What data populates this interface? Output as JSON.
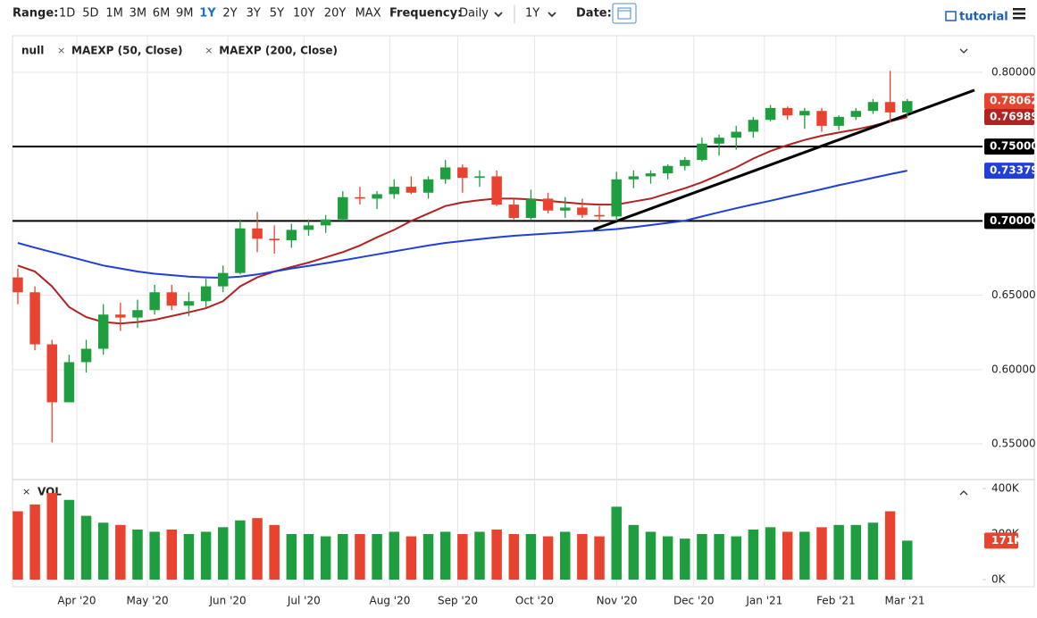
{
  "toolbar": {
    "range_label": "Range:",
    "ranges": [
      "1D",
      "5D",
      "1M",
      "3M",
      "6M",
      "9M",
      "1Y",
      "2Y",
      "3Y",
      "5Y",
      "10Y",
      "20Y",
      "MAX"
    ],
    "active_range": 6,
    "frequency_label": "Frequency:",
    "frequency": "Daily",
    "period": "1Y",
    "date_label": "Date:",
    "tutorial": "tutorial"
  },
  "chart_data": {
    "type": "candlestick",
    "symbol": "null",
    "open": [
      0.662,
      0.652,
      0.617,
      0.578,
      0.605,
      0.614,
      0.637,
      0.635,
      0.64,
      0.652,
      0.643,
      0.646,
      0.656,
      0.665,
      0.695,
      0.688,
      0.687,
      0.694,
      0.697,
      0.701,
      0.716,
      0.715,
      0.718,
      0.723,
      0.719,
      0.728,
      0.736,
      0.729,
      0.73,
      0.711,
      0.702,
      0.715,
      0.707,
      0.709,
      0.704,
      0.703,
      0.728,
      0.73,
      0.732,
      0.737,
      0.741,
      0.752,
      0.756,
      0.76,
      0.768,
      0.776,
      0.771,
      0.774,
      0.764,
      0.77,
      0.774,
      0.78,
      0.773
    ],
    "high": [
      0.668,
      0.656,
      0.62,
      0.61,
      0.62,
      0.644,
      0.645,
      0.647,
      0.657,
      0.657,
      0.652,
      0.661,
      0.67,
      0.701,
      0.706,
      0.697,
      0.698,
      0.701,
      0.704,
      0.72,
      0.723,
      0.72,
      0.728,
      0.73,
      0.73,
      0.741,
      0.738,
      0.734,
      0.734,
      0.715,
      0.721,
      0.719,
      0.716,
      0.715,
      0.71,
      0.733,
      0.734,
      0.734,
      0.738,
      0.743,
      0.756,
      0.758,
      0.764,
      0.77,
      0.778,
      0.777,
      0.776,
      0.776,
      0.771,
      0.776,
      0.782,
      0.801,
      0.782
    ],
    "low": [
      0.644,
      0.613,
      0.551,
      0.58,
      0.598,
      0.61,
      0.626,
      0.628,
      0.637,
      0.64,
      0.636,
      0.642,
      0.652,
      0.664,
      0.679,
      0.678,
      0.682,
      0.69,
      0.692,
      0.7,
      0.711,
      0.708,
      0.715,
      0.718,
      0.715,
      0.725,
      0.719,
      0.723,
      0.71,
      0.701,
      0.701,
      0.705,
      0.702,
      0.702,
      0.699,
      0.7,
      0.722,
      0.725,
      0.728,
      0.734,
      0.74,
      0.744,
      0.748,
      0.756,
      0.767,
      0.768,
      0.762,
      0.76,
      0.761,
      0.768,
      0.772,
      0.766,
      0.77
    ],
    "close": [
      0.652,
      0.617,
      0.578,
      0.605,
      0.614,
      0.637,
      0.635,
      0.64,
      0.652,
      0.643,
      0.646,
      0.656,
      0.665,
      0.695,
      0.688,
      0.687,
      0.694,
      0.697,
      0.701,
      0.716,
      0.715,
      0.718,
      0.723,
      0.719,
      0.728,
      0.736,
      0.729,
      0.73,
      0.711,
      0.702,
      0.715,
      0.707,
      0.709,
      0.704,
      0.703,
      0.728,
      0.73,
      0.732,
      0.737,
      0.741,
      0.752,
      0.756,
      0.76,
      0.768,
      0.776,
      0.771,
      0.774,
      0.764,
      0.77,
      0.774,
      0.78,
      0.773,
      0.78062
    ],
    "up_color": "#1e9e3e",
    "down_color": "#e8432e",
    "overlays": [
      {
        "name": "MAEXP (50, Close)",
        "color": "#b22222",
        "values": [
          0.67,
          0.666,
          0.656,
          0.642,
          0.6353,
          0.632,
          0.631,
          0.632,
          0.6335,
          0.636,
          0.6385,
          0.6413,
          0.646,
          0.656,
          0.662,
          0.666,
          0.669,
          0.672,
          0.6755,
          0.679,
          0.6835,
          0.689,
          0.694,
          0.7,
          0.705,
          0.71,
          0.7125,
          0.714,
          0.715,
          0.715,
          0.7145,
          0.7135,
          0.7125,
          0.7115,
          0.711,
          0.711,
          0.713,
          0.715,
          0.7185,
          0.722,
          0.726,
          0.731,
          0.736,
          0.742,
          0.747,
          0.751,
          0.7545,
          0.7573,
          0.7595,
          0.7615,
          0.764,
          0.767,
          0.76989
        ]
      },
      {
        "name": "MAEXP (200, Close)",
        "color": "#1f3fd6",
        "values": [
          0.6852,
          0.682,
          0.679,
          0.676,
          0.673,
          0.67,
          0.668,
          0.666,
          0.6645,
          0.6635,
          0.6625,
          0.662,
          0.6618,
          0.6625,
          0.664,
          0.666,
          0.668,
          0.6698,
          0.6715,
          0.6735,
          0.6755,
          0.6775,
          0.6795,
          0.6815,
          0.6835,
          0.6852,
          0.6865,
          0.6878,
          0.689,
          0.69,
          0.6908,
          0.6915,
          0.6922,
          0.693,
          0.6937,
          0.6945,
          0.6958,
          0.6972,
          0.6987,
          0.7002,
          0.703,
          0.7058,
          0.7085,
          0.7111,
          0.7136,
          0.7162,
          0.7188,
          0.7213,
          0.724,
          0.7265,
          0.729,
          0.7315,
          0.73379
        ]
      }
    ],
    "badges": [
      {
        "value": 0.78062,
        "color": "#e8432e"
      },
      {
        "value": 0.76989,
        "color": "#b22222"
      },
      {
        "value": 0.73379,
        "color": "#1f3fd6"
      }
    ],
    "levels": [
      {
        "value": 0.75,
        "label": "0.75000"
      },
      {
        "value": 0.7,
        "label": "0.70000"
      }
    ],
    "trendline": {
      "x": [
        33.66,
        55.93
      ],
      "y": [
        0.6942,
        0.788
      ]
    },
    "xlim": [
      -0.31,
      56.4
    ],
    "xticks": [
      {
        "value": 3.45,
        "label": "Apr '20"
      },
      {
        "value": 7.58,
        "label": "May '20"
      },
      {
        "value": 12.28,
        "label": "Jun '20"
      },
      {
        "value": 16.73,
        "label": "Jul '20"
      },
      {
        "value": 21.75,
        "label": "Aug '20"
      },
      {
        "value": 25.72,
        "label": "Sep '20"
      },
      {
        "value": 30.21,
        "label": "Oct '20"
      },
      {
        "value": 35.02,
        "label": "Nov '20"
      },
      {
        "value": 39.52,
        "label": "Dec '20"
      },
      {
        "value": 43.65,
        "label": "Jan '21"
      },
      {
        "value": 47.83,
        "label": "Feb '21"
      },
      {
        "value": 51.86,
        "label": "Mar '21"
      }
    ],
    "ylim": [
      0.5272,
      0.8246
    ],
    "yticks": [
      {
        "value": 0.55,
        "label": "0.55000"
      },
      {
        "value": 0.6,
        "label": "0.60000"
      },
      {
        "value": 0.65,
        "label": "0.65000"
      },
      {
        "value": 0.7,
        "label": "0.70000"
      },
      {
        "value": 0.75,
        "label": "0.75000"
      },
      {
        "value": 0.8,
        "label": "0.80000"
      }
    ],
    "grid": true,
    "volume": {
      "name": "VOL",
      "values": [
        300000,
        330000,
        380000,
        350000,
        280000,
        250000,
        240000,
        220000,
        210000,
        220000,
        200000,
        210000,
        230000,
        260000,
        270000,
        240000,
        200000,
        200000,
        190000,
        200000,
        200000,
        200000,
        210000,
        190000,
        200000,
        210000,
        200000,
        210000,
        220000,
        200000,
        200000,
        190000,
        210000,
        200000,
        190000,
        320000,
        240000,
        210000,
        190000,
        180000,
        200000,
        200000,
        190000,
        220000,
        230000,
        210000,
        210000,
        230000,
        240000,
        240000,
        250000,
        300000,
        171000
      ],
      "last_label": "171K",
      "ylim": [
        0,
        400000
      ],
      "yticks": [
        {
          "value": 0,
          "label": "0K"
        },
        {
          "value": 200000,
          "label": "200K"
        },
        {
          "value": 400000,
          "label": "400K"
        }
      ]
    }
  }
}
